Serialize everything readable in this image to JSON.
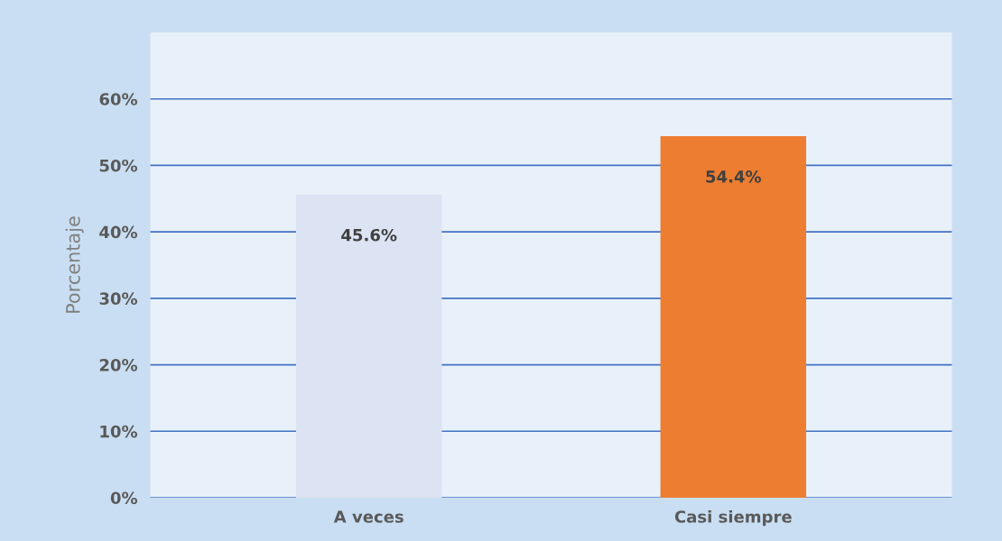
{
  "chart_data": {
    "type": "bar",
    "ylabel": "Porcentaje",
    "categories": [
      "A veces",
      "Casi siempre"
    ],
    "values": [
      45.6,
      54.4
    ],
    "colors": [
      "#dce3f3",
      "#ed7d31"
    ],
    "value_labels": [
      "45.6%",
      "54.4%"
    ],
    "ylim": [
      0,
      70
    ],
    "yticks": [
      {
        "value": 0,
        "label": "0%"
      },
      {
        "value": 10,
        "label": "10%"
      },
      {
        "value": 20,
        "label": "20%"
      },
      {
        "value": 30,
        "label": "30%"
      },
      {
        "value": 40,
        "label": "40%"
      },
      {
        "value": 50,
        "label": "50%"
      },
      {
        "value": 60,
        "label": "60%"
      }
    ],
    "grid": "y"
  }
}
